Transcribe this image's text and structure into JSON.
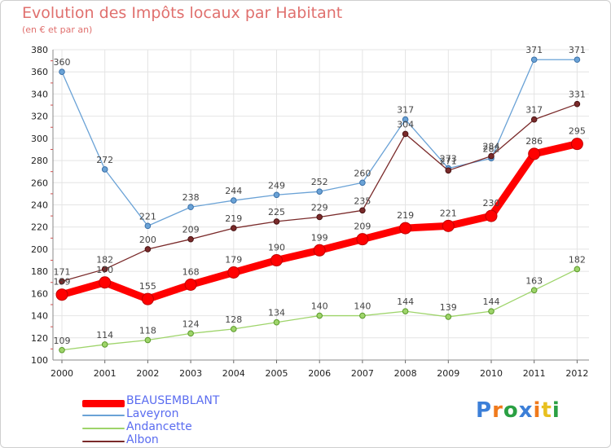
{
  "title": "Evolution des Impôts locaux par Habitant",
  "subtitle": "(en € et par an)",
  "logo": {
    "text": "Proxiti",
    "colors": [
      "#3c7fd8",
      "#f07a1c",
      "#2aa043",
      "#3c7fd8",
      "#f07a1c",
      "#e8c020",
      "#2aa043"
    ]
  },
  "chart_data": {
    "type": "line",
    "x": [
      "2000",
      "2001",
      "2002",
      "2003",
      "2004",
      "2005",
      "2006",
      "2007",
      "2008",
      "2009",
      "2010",
      "2011",
      "2012"
    ],
    "ylim": [
      100,
      380
    ],
    "yticks": [
      100,
      120,
      140,
      160,
      180,
      200,
      220,
      240,
      260,
      280,
      300,
      320,
      340,
      360,
      380
    ],
    "grid": true,
    "legend_position": "bottom-left",
    "series": [
      {
        "name": "BEAUSEMBLANT",
        "color": "#ff0000",
        "values": [
          159,
          170,
          155,
          168,
          179,
          190,
          199,
          209,
          219,
          221,
          230,
          286,
          295
        ]
      },
      {
        "name": "Laveyron",
        "color": "#6aa2d6",
        "values": [
          360,
          272,
          221,
          238,
          244,
          249,
          252,
          260,
          317,
          273,
          282,
          371,
          371
        ]
      },
      {
        "name": "Andancette",
        "color": "#9ed46a",
        "values": [
          109,
          114,
          118,
          124,
          128,
          134,
          140,
          140,
          144,
          139,
          144,
          163,
          182
        ]
      },
      {
        "name": "Albon",
        "color": "#7a2a2a",
        "values": [
          171,
          182,
          200,
          209,
          219,
          225,
          229,
          235,
          304,
          271,
          284,
          317,
          331
        ]
      }
    ]
  }
}
